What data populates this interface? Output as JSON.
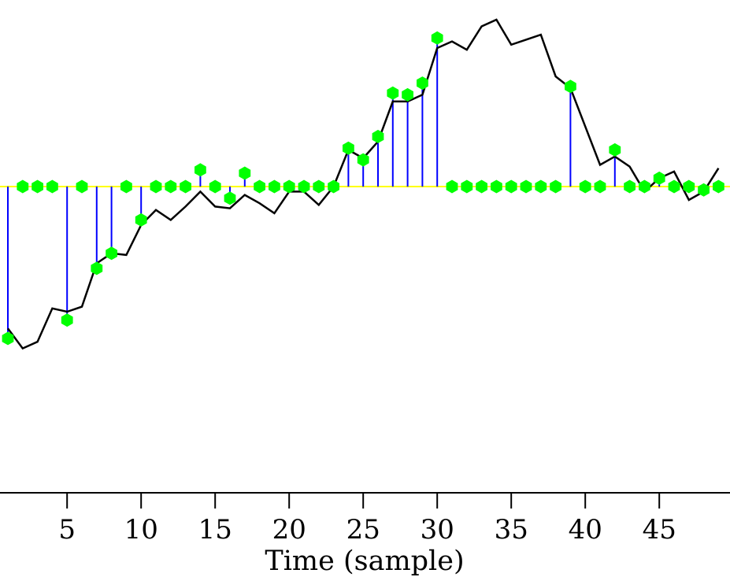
{
  "chart_data": {
    "type": "line",
    "xlabel": "Time (sample)",
    "ylabel": "",
    "title": "",
    "xlim": [
      0.5,
      49.5
    ],
    "ylim": [
      -1.9,
      1.2
    ],
    "x_ticks": [
      5,
      10,
      15,
      20,
      25,
      30,
      35,
      40,
      45
    ],
    "x_tick_labels": [
      "5",
      "10",
      "15",
      "20",
      "25",
      "30",
      "35",
      "40",
      "45"
    ],
    "baseline": 0,
    "grid": false,
    "legend": "none",
    "series": [
      {
        "kind": "line",
        "color": "#000000",
        "x": [
          1,
          2,
          3,
          4,
          5,
          6,
          7,
          8,
          9,
          10,
          11,
          12,
          13,
          14,
          15,
          16,
          17,
          18,
          19,
          20,
          21,
          22,
          23,
          24,
          25,
          26,
          27,
          28,
          29,
          30,
          31,
          32,
          33,
          34,
          35,
          36,
          37,
          38,
          39,
          40,
          41,
          42,
          43,
          44,
          45,
          46,
          47,
          48,
          49
        ],
        "y": [
          -0.85,
          -0.97,
          -0.93,
          -0.73,
          -0.75,
          -0.72,
          -0.46,
          -0.4,
          -0.41,
          -0.23,
          -0.14,
          -0.2,
          -0.12,
          -0.03,
          -0.12,
          -0.13,
          -0.05,
          -0.1,
          -0.16,
          -0.03,
          -0.03,
          -0.11,
          0.0,
          0.22,
          0.17,
          0.27,
          0.51,
          0.51,
          0.55,
          0.83,
          0.87,
          0.82,
          0.96,
          1.0,
          0.85,
          0.88,
          0.91,
          0.66,
          0.59,
          0.36,
          0.13,
          0.18,
          0.12,
          -0.03,
          0.05,
          0.09,
          -0.08,
          -0.03,
          0.11
        ]
      },
      {
        "kind": "stem",
        "color": "#0000ff",
        "marker_color": "#00ff00",
        "x": [
          1,
          2,
          3,
          4,
          5,
          6,
          7,
          8,
          9,
          10,
          11,
          12,
          13,
          14,
          15,
          16,
          17,
          18,
          19,
          20,
          21,
          22,
          23,
          24,
          25,
          26,
          27,
          28,
          29,
          30,
          31,
          32,
          33,
          34,
          35,
          36,
          37,
          38,
          39,
          40,
          41,
          42,
          43,
          44,
          45,
          46,
          47,
          48,
          49
        ],
        "y": [
          -0.91,
          0,
          0,
          0,
          -0.8,
          0,
          -0.49,
          -0.4,
          0,
          -0.2,
          0,
          0,
          0,
          0.1,
          0,
          -0.07,
          0.08,
          0,
          0,
          0,
          0,
          0,
          0,
          0.23,
          0.16,
          0.3,
          0.56,
          0.55,
          0.62,
          0.89,
          0,
          0,
          0,
          0,
          0,
          0,
          0,
          0,
          0.6,
          0,
          0,
          0.22,
          0,
          0,
          0.05,
          0,
          0,
          -0.02,
          0
        ]
      }
    ],
    "reference_line_color": "#ffff00"
  }
}
